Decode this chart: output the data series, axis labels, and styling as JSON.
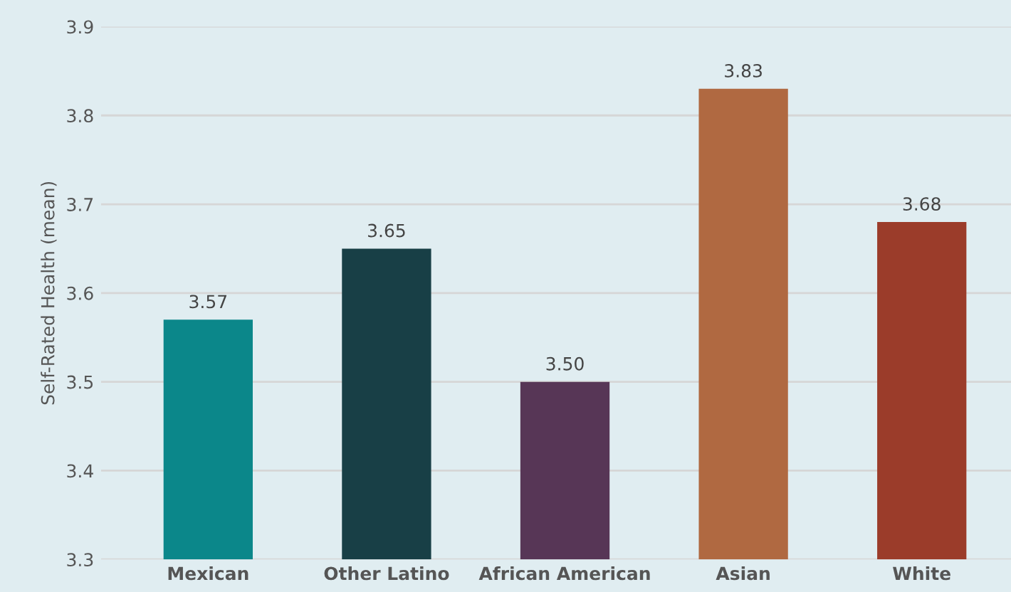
{
  "chart_data": {
    "type": "bar",
    "ylabel": "Self-Rated Health (mean)",
    "categories": [
      "Mexican",
      "Other Latino",
      "African American",
      "Asian",
      "White"
    ],
    "values": [
      3.57,
      3.65,
      3.5,
      3.83,
      3.68
    ],
    "value_labels": [
      "3.57",
      "3.65",
      "3.50",
      "3.83",
      "3.68"
    ],
    "colors": [
      "#0b878a",
      "#183f46",
      "#573656",
      "#b06941",
      "#9b3c2a"
    ],
    "ylim": [
      3.3,
      3.9
    ],
    "yticks": [
      3.3,
      3.4,
      3.5,
      3.6,
      3.7,
      3.8,
      3.9
    ],
    "grid": "y"
  }
}
